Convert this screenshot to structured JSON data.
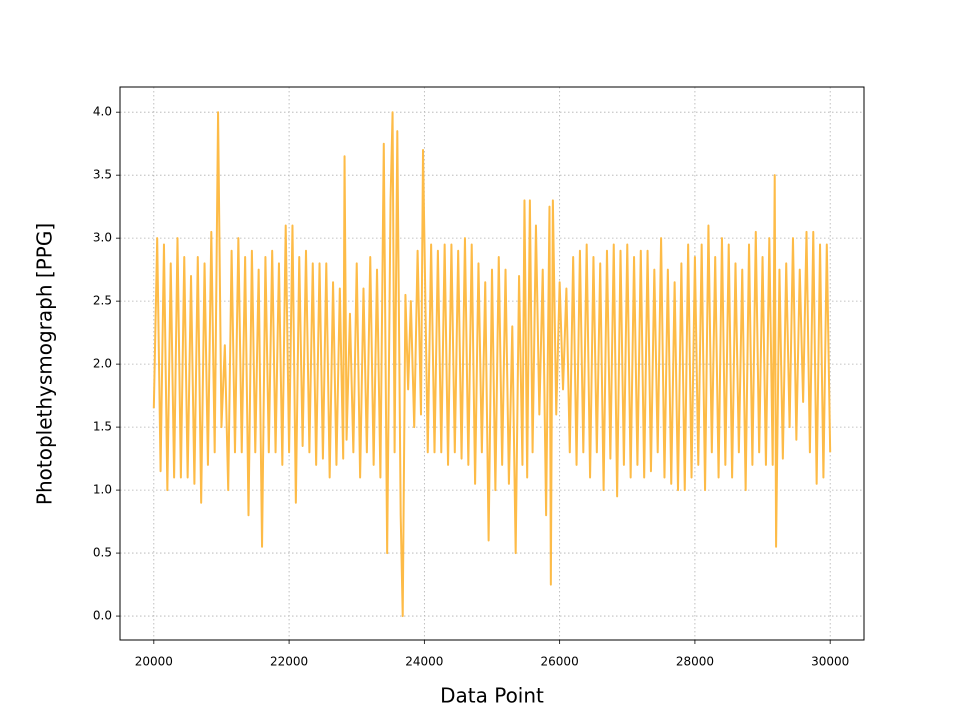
{
  "chart_data": {
    "type": "line",
    "xlabel": "Data Point",
    "ylabel": "Photoplethysmograph [PPG]",
    "color": "#fdbb47",
    "grid": true,
    "xlim": [
      19500,
      30500
    ],
    "ylim": [
      -0.19,
      4.2
    ],
    "xticks": [
      20000,
      22000,
      24000,
      26000,
      28000,
      30000
    ],
    "yticks": [
      {
        "value": 0,
        "label": "0.0"
      },
      0.5,
      {
        "value": 1,
        "label": "1.0"
      },
      1.5,
      {
        "value": 2,
        "label": "2.0"
      },
      2.5,
      {
        "value": 3,
        "label": "3.0"
      },
      3.5,
      {
        "value": 4,
        "label": "4.0"
      }
    ],
    "x": [
      20000,
      20050,
      20100,
      20150,
      20200,
      20250,
      20300,
      20350,
      20400,
      20450,
      20500,
      20550,
      20600,
      20650,
      20700,
      20750,
      20800,
      20850,
      20900,
      20950,
      21000,
      21050,
      21100,
      21150,
      21200,
      21250,
      21300,
      21350,
      21400,
      21450,
      21500,
      21550,
      21600,
      21650,
      21700,
      21750,
      21800,
      21850,
      21900,
      21950,
      22000,
      22050,
      22100,
      22150,
      22200,
      22250,
      22300,
      22350,
      22400,
      22450,
      22500,
      22550,
      22600,
      22650,
      22700,
      22750,
      22800,
      22820,
      22850,
      22900,
      22950,
      23000,
      23050,
      23100,
      23150,
      23200,
      23250,
      23300,
      23350,
      23400,
      23450,
      23500,
      23530,
      23560,
      23600,
      23650,
      23680,
      23720,
      23760,
      23800,
      23850,
      23900,
      23950,
      23980,
      24050,
      24100,
      24150,
      24200,
      24250,
      24300,
      24350,
      24400,
      24450,
      24500,
      24550,
      24600,
      24650,
      24700,
      24750,
      24800,
      24850,
      24900,
      24950,
      25000,
      25050,
      25100,
      25150,
      25200,
      25250,
      25300,
      25350,
      25400,
      25450,
      25480,
      25520,
      25560,
      25600,
      25650,
      25700,
      25750,
      25800,
      25850,
      25870,
      25900,
      25950,
      26000,
      26050,
      26100,
      26150,
      26200,
      26250,
      26300,
      26350,
      26400,
      26450,
      26500,
      26550,
      26600,
      26650,
      26700,
      26750,
      26800,
      26850,
      26900,
      26950,
      27000,
      27050,
      27100,
      27150,
      27200,
      27250,
      27300,
      27350,
      27400,
      27450,
      27500,
      27550,
      27600,
      27650,
      27700,
      27750,
      27800,
      27850,
      27900,
      27950,
      28000,
      28050,
      28100,
      28150,
      28200,
      28250,
      28300,
      28350,
      28400,
      28450,
      28500,
      28550,
      28600,
      28650,
      28700,
      28750,
      28800,
      28850,
      28900,
      28950,
      29000,
      29050,
      29100,
      29150,
      29180,
      29200,
      29250,
      29300,
      29350,
      29400,
      29450,
      29500,
      29550,
      29600,
      29650,
      29700,
      29750,
      29800,
      29850,
      29900,
      29950,
      30000
    ],
    "values": [
      1.65,
      3.0,
      1.15,
      2.95,
      1.0,
      2.8,
      1.1,
      3.0,
      1.1,
      2.85,
      1.1,
      2.7,
      1.05,
      2.85,
      0.9,
      2.8,
      1.2,
      3.05,
      1.3,
      4.0,
      1.5,
      2.15,
      1.0,
      2.9,
      1.3,
      3.0,
      1.3,
      2.85,
      0.8,
      2.9,
      1.3,
      2.75,
      0.55,
      2.85,
      1.3,
      2.9,
      1.3,
      2.8,
      1.2,
      3.1,
      1.3,
      3.1,
      0.9,
      2.85,
      1.35,
      2.9,
      1.3,
      2.8,
      1.2,
      2.8,
      1.25,
      2.8,
      1.1,
      2.65,
      1.2,
      2.6,
      1.25,
      3.65,
      1.4,
      2.4,
      1.3,
      2.8,
      1.1,
      2.6,
      1.3,
      2.85,
      1.2,
      2.75,
      1.1,
      3.75,
      0.5,
      3.3,
      4.0,
      1.3,
      3.85,
      0.8,
      0.0,
      2.55,
      1.8,
      2.5,
      1.5,
      2.9,
      1.6,
      3.7,
      1.3,
      2.95,
      1.3,
      2.9,
      1.3,
      2.95,
      1.2,
      2.95,
      1.3,
      2.9,
      1.25,
      3.0,
      1.2,
      2.95,
      1.05,
      2.8,
      1.3,
      2.65,
      0.6,
      2.75,
      1.0,
      2.85,
      1.2,
      2.75,
      1.05,
      2.3,
      0.5,
      2.7,
      1.2,
      3.3,
      1.1,
      3.3,
      1.3,
      3.1,
      1.6,
      2.75,
      0.8,
      3.25,
      0.25,
      3.3,
      1.6,
      2.65,
      1.8,
      2.6,
      1.3,
      2.85,
      1.2,
      2.9,
      1.3,
      2.95,
      1.1,
      2.85,
      1.3,
      2.8,
      1.0,
      2.9,
      1.25,
      2.95,
      0.95,
      2.9,
      1.2,
      2.95,
      1.1,
      2.85,
      1.2,
      2.9,
      1.1,
      2.9,
      1.15,
      2.75,
      1.3,
      3.0,
      1.1,
      2.75,
      1.05,
      2.65,
      1.0,
      2.8,
      1.0,
      2.95,
      1.1,
      2.85,
      1.2,
      2.95,
      1.0,
      3.1,
      1.3,
      2.85,
      1.1,
      3.0,
      1.2,
      2.95,
      1.1,
      2.8,
      1.3,
      2.75,
      1.0,
      2.95,
      1.2,
      3.05,
      1.3,
      2.85,
      1.2,
      3.0,
      1.2,
      3.5,
      0.55,
      2.75,
      1.25,
      2.8,
      1.5,
      3.0,
      1.4,
      2.75,
      1.7,
      3.05,
      1.3,
      3.05,
      1.05,
      2.95,
      1.1,
      2.95,
      1.3
    ]
  }
}
